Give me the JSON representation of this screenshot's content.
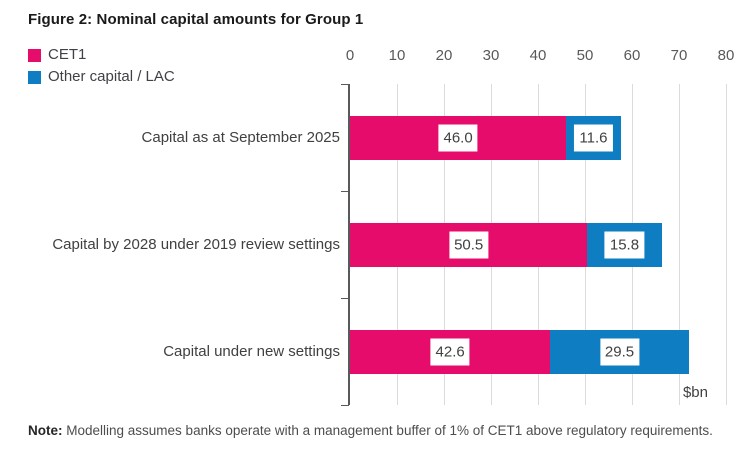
{
  "figure": {
    "title": "Figure 2: Nominal capital amounts for Group 1",
    "note_label": "Note:",
    "note_text": " Modelling assumes banks operate with a management buffer of 1% of CET1 above regulatory requirements."
  },
  "chart_data": {
    "type": "bar",
    "orientation": "horizontal",
    "stacked": true,
    "title": "Figure 2: Nominal capital amounts for Group 1",
    "categories": [
      "Capital as at September 2025",
      "Capital by 2028 under 2019 review settings",
      "Capital under new settings"
    ],
    "series": [
      {
        "name": "CET1",
        "color": "#e60c6c",
        "values": [
          46.0,
          50.5,
          42.6
        ]
      },
      {
        "name": "Other capital / LAC",
        "color": "#0f7dc2",
        "values": [
          11.6,
          15.8,
          29.5
        ]
      }
    ],
    "totals": [
      57.6,
      66.3,
      72.1
    ],
    "value_axis": {
      "min": 0,
      "max": 80,
      "tick_interval": 10,
      "ticks": [
        0,
        10,
        20,
        30,
        40,
        50,
        60,
        70,
        80
      ],
      "unit_label": "$bn"
    },
    "legend_position": "top-left",
    "grid": true,
    "data_labels": true,
    "data_label_style": "white-box"
  }
}
